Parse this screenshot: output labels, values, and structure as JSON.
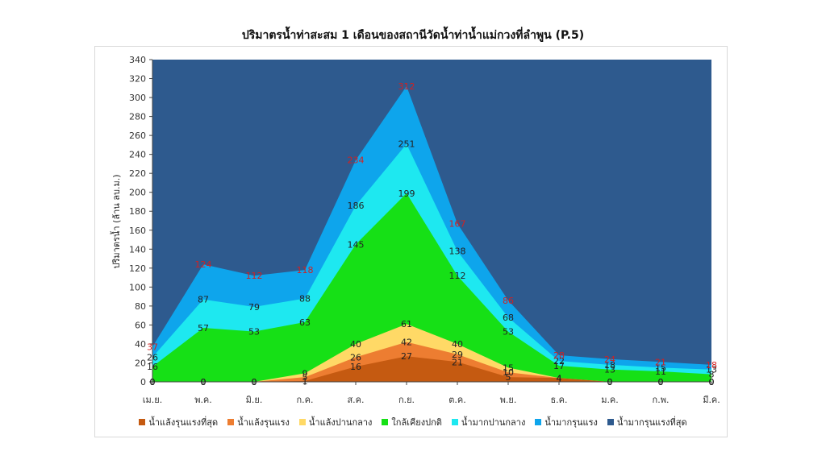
{
  "chart_data": {
    "type": "area",
    "title": "ปริมาตรน้ำท่าสะสม 1 เดือนของสถานีวัดน้ำท่าน้ำแม่กวงที่ลำพูน (P.5)",
    "ylabel": "ปริมาตรน้ำ (ล้าน ลบ.ม.)",
    "xlabel": "",
    "ylim": [
      0,
      340
    ],
    "yticks": [
      0,
      20,
      40,
      60,
      80,
      100,
      120,
      140,
      160,
      180,
      200,
      220,
      240,
      260,
      280,
      300,
      320,
      340
    ],
    "categories": [
      "เม.ย.",
      "พ.ค.",
      "มิ.ย.",
      "ก.ค.",
      "ส.ค.",
      "ก.ย.",
      "ต.ค.",
      "พ.ย.",
      "ธ.ค.",
      "ม.ค.",
      "ก.พ.",
      "มี.ค."
    ],
    "legend_position": "bottom",
    "series": [
      {
        "name": "น้ำแล้งรุนแรงที่สุด",
        "color": "#c55a11",
        "values": [
          0,
          0,
          0,
          1,
          16,
          27,
          21,
          5,
          4,
          0,
          0,
          0
        ]
      },
      {
        "name": "น้ำแล้งรุนแรง",
        "color": "#ed7d31",
        "values": [
          0,
          0,
          0,
          5,
          26,
          42,
          29,
          10,
          4,
          0,
          0,
          0
        ]
      },
      {
        "name": "น้ำแล้งปานกลาง",
        "color": "#ffd966",
        "values": [
          0,
          0,
          0,
          9,
          40,
          61,
          40,
          15,
          4,
          0,
          0,
          0
        ]
      },
      {
        "name": "ใกล้เคียงปกติ",
        "color": "#16e016",
        "values": [
          16,
          57,
          53,
          63,
          145,
          199,
          112,
          53,
          17,
          13,
          11,
          8
        ]
      },
      {
        "name": "น้ำมากปานกลาง",
        "color": "#1ee8f0",
        "values": [
          26,
          87,
          79,
          88,
          186,
          251,
          138,
          68,
          22,
          18,
          15,
          13
        ]
      },
      {
        "name": "น้ำมากรุนแรง",
        "color": "#0ea5ec",
        "values": [
          37,
          124,
          112,
          118,
          234,
          312,
          167,
          86,
          28,
          24,
          21,
          18
        ]
      },
      {
        "name": "น้ำมากรุนแรงที่สุด",
        "color": "#2e5a8e",
        "values": [
          340,
          340,
          340,
          340,
          340,
          340,
          340,
          340,
          340,
          340,
          340,
          340
        ]
      }
    ]
  }
}
